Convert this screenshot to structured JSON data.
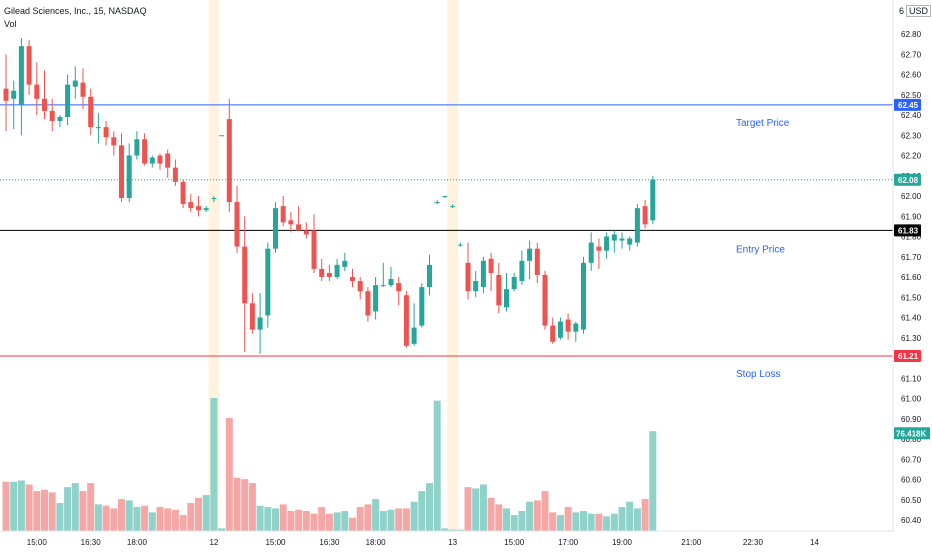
{
  "legend": {
    "symbol_line": "Gilead Sciences, Inc., 15, NASDAQ",
    "volume_label": "Vol"
  },
  "currency": {
    "prefix": "6",
    "code": "USD"
  },
  "colors": {
    "up": "#26a69a",
    "down": "#ef5350",
    "vol_up": "#8fd2c9",
    "vol_down": "#f4a7a5",
    "target_line": "#2962ff",
    "entry_line": "#000000",
    "stop_line": "#f23645",
    "session_shade": "#fff3e0",
    "annotation_text": "#2962ff",
    "current_price_bg": "#26a69a"
  },
  "chart_data": {
    "type": "candlestick",
    "title": "Gilead Sciences, Inc., 15, NASDAQ",
    "ylim": [
      60.35,
      62.86
    ],
    "price_ticks": [
      "62.80",
      "62.70",
      "62.60",
      "62.50",
      "62.40",
      "62.30",
      "62.20",
      "62.10",
      "62.00",
      "61.90",
      "61.80",
      "61.70",
      "61.60",
      "61.50",
      "61.40",
      "61.30",
      "61.20",
      "61.10",
      "61.00",
      "60.90",
      "60.80",
      "60.70",
      "60.60",
      "60.50",
      "60.40"
    ],
    "time_labels": [
      {
        "idx": 4,
        "text": "15:00"
      },
      {
        "idx": 11,
        "text": "16:30"
      },
      {
        "idx": 17,
        "text": "18:00"
      },
      {
        "idx": 27,
        "text": "12"
      },
      {
        "idx": 35,
        "text": "15:00"
      },
      {
        "idx": 42,
        "text": "16:30"
      },
      {
        "idx": 48,
        "text": "18:00"
      },
      {
        "idx": 58,
        "text": "13"
      },
      {
        "idx": 66,
        "text": "15:00"
      },
      {
        "idx": 73,
        "text": "17:00"
      },
      {
        "idx": 80,
        "text": "19:00"
      },
      {
        "idx": 89,
        "text": "21:00"
      },
      {
        "idx": 97,
        "text": "22:30"
      },
      {
        "idx": 105,
        "text": "14"
      }
    ],
    "session_breaks": [
      27,
      58
    ],
    "levels": [
      {
        "name": "Target Price",
        "price": 62.45,
        "label": "62.45",
        "color": "#2962ff"
      },
      {
        "name": "Entry Price",
        "price": 61.83,
        "label": "61.83",
        "color": "#000000"
      },
      {
        "name": "Stop Loss",
        "price": 61.21,
        "label": "61.21",
        "color": "#f23645"
      }
    ],
    "current_price": {
      "price": 62.08,
      "label": "62.08"
    },
    "volume_last_label": "76.418K",
    "candles": [
      {
        "o": 62.53,
        "h": 62.7,
        "l": 62.32,
        "c": 62.47,
        "v": 0.37
      },
      {
        "o": 62.48,
        "h": 62.57,
        "l": 62.33,
        "c": 62.52,
        "v": 0.37
      },
      {
        "o": 62.45,
        "h": 62.78,
        "l": 62.3,
        "c": 62.74,
        "v": 0.38
      },
      {
        "o": 62.74,
        "h": 62.77,
        "l": 62.5,
        "c": 62.55,
        "v": 0.35
      },
      {
        "o": 62.55,
        "h": 62.66,
        "l": 62.4,
        "c": 62.48,
        "v": 0.3
      },
      {
        "o": 62.48,
        "h": 62.62,
        "l": 62.38,
        "c": 62.42,
        "v": 0.31
      },
      {
        "o": 62.42,
        "h": 62.48,
        "l": 62.32,
        "c": 62.37,
        "v": 0.29
      },
      {
        "o": 62.37,
        "h": 62.4,
        "l": 62.34,
        "c": 62.39,
        "v": 0.21
      },
      {
        "o": 62.39,
        "h": 62.6,
        "l": 62.35,
        "c": 62.55,
        "v": 0.33
      },
      {
        "o": 62.54,
        "h": 62.64,
        "l": 62.48,
        "c": 62.57,
        "v": 0.36
      },
      {
        "o": 62.56,
        "h": 62.63,
        "l": 62.43,
        "c": 62.49,
        "v": 0.3
      },
      {
        "o": 62.49,
        "h": 62.53,
        "l": 62.3,
        "c": 62.34,
        "v": 0.36
      },
      {
        "o": 62.34,
        "h": 62.41,
        "l": 62.26,
        "c": 62.34,
        "v": 0.2
      },
      {
        "o": 62.34,
        "h": 62.37,
        "l": 62.25,
        "c": 62.29,
        "v": 0.19
      },
      {
        "o": 62.29,
        "h": 62.32,
        "l": 62.2,
        "c": 62.25,
        "v": 0.17
      },
      {
        "o": 62.25,
        "h": 62.31,
        "l": 61.97,
        "c": 61.99,
        "v": 0.24
      },
      {
        "o": 61.99,
        "h": 62.26,
        "l": 61.97,
        "c": 62.2,
        "v": 0.23
      },
      {
        "o": 62.2,
        "h": 62.32,
        "l": 62.18,
        "c": 62.28,
        "v": 0.18
      },
      {
        "o": 62.28,
        "h": 62.31,
        "l": 62.15,
        "c": 62.16,
        "v": 0.19
      },
      {
        "o": 62.16,
        "h": 62.2,
        "l": 62.14,
        "c": 62.19,
        "v": 0.14
      },
      {
        "o": 62.2,
        "h": 62.21,
        "l": 62.13,
        "c": 62.16,
        "v": 0.18
      },
      {
        "o": 62.21,
        "h": 62.23,
        "l": 62.09,
        "c": 62.14,
        "v": 0.17
      },
      {
        "o": 62.14,
        "h": 62.18,
        "l": 62.05,
        "c": 62.07,
        "v": 0.16
      },
      {
        "o": 62.07,
        "h": 62.08,
        "l": 61.94,
        "c": 61.96,
        "v": 0.12
      },
      {
        "o": 61.97,
        "h": 62.01,
        "l": 61.92,
        "c": 61.94,
        "v": 0.21
      },
      {
        "o": 61.95,
        "h": 62.0,
        "l": 61.9,
        "c": 61.93,
        "v": 0.25
      },
      {
        "o": 61.93,
        "h": 61.95,
        "l": 61.92,
        "c": 61.94,
        "v": 0.27
      },
      {
        "o": 61.99,
        "h": 62.0,
        "l": 61.97,
        "c": 61.99,
        "v": 1.0
      },
      {
        "o": 62.3,
        "h": 62.3,
        "l": 62.3,
        "c": 62.3,
        "v": 0.02
      },
      {
        "o": 62.38,
        "h": 62.48,
        "l": 61.92,
        "c": 61.97,
        "v": 0.85
      },
      {
        "o": 61.97,
        "h": 62.05,
        "l": 61.72,
        "c": 61.75,
        "v": 0.4
      },
      {
        "o": 61.75,
        "h": 61.9,
        "l": 61.23,
        "c": 61.47,
        "v": 0.39
      },
      {
        "o": 61.47,
        "h": 61.52,
        "l": 61.32,
        "c": 61.34,
        "v": 0.36
      },
      {
        "o": 61.34,
        "h": 61.52,
        "l": 61.22,
        "c": 61.4,
        "v": 0.19
      },
      {
        "o": 61.41,
        "h": 61.77,
        "l": 61.35,
        "c": 61.74,
        "v": 0.18
      },
      {
        "o": 61.74,
        "h": 61.97,
        "l": 61.72,
        "c": 61.94,
        "v": 0.17
      },
      {
        "o": 61.95,
        "h": 62.0,
        "l": 61.85,
        "c": 61.87,
        "v": 0.2
      },
      {
        "o": 61.88,
        "h": 61.92,
        "l": 61.82,
        "c": 61.86,
        "v": 0.15
      },
      {
        "o": 61.86,
        "h": 61.95,
        "l": 61.83,
        "c": 61.83,
        "v": 0.16
      },
      {
        "o": 61.83,
        "h": 61.87,
        "l": 61.79,
        "c": 61.81,
        "v": 0.15
      },
      {
        "o": 61.83,
        "h": 61.91,
        "l": 61.62,
        "c": 61.64,
        "v": 0.13
      },
      {
        "o": 61.64,
        "h": 61.69,
        "l": 61.58,
        "c": 61.6,
        "v": 0.18
      },
      {
        "o": 61.62,
        "h": 61.66,
        "l": 61.58,
        "c": 61.6,
        "v": 0.13
      },
      {
        "o": 61.6,
        "h": 61.69,
        "l": 61.59,
        "c": 61.66,
        "v": 0.14
      },
      {
        "o": 61.65,
        "h": 61.72,
        "l": 61.63,
        "c": 61.68,
        "v": 0.15
      },
      {
        "o": 61.6,
        "h": 61.64,
        "l": 61.55,
        "c": 61.58,
        "v": 0.1
      },
      {
        "o": 61.58,
        "h": 61.6,
        "l": 61.49,
        "c": 61.53,
        "v": 0.18
      },
      {
        "o": 61.53,
        "h": 61.55,
        "l": 61.38,
        "c": 61.41,
        "v": 0.2
      },
      {
        "o": 61.43,
        "h": 61.6,
        "l": 61.39,
        "c": 61.56,
        "v": 0.24
      },
      {
        "o": 61.56,
        "h": 61.67,
        "l": 61.55,
        "c": 61.56,
        "v": 0.15
      },
      {
        "o": 61.56,
        "h": 61.65,
        "l": 61.55,
        "c": 61.59,
        "v": 0.16
      },
      {
        "o": 61.57,
        "h": 61.6,
        "l": 61.46,
        "c": 61.53,
        "v": 0.17
      },
      {
        "o": 61.51,
        "h": 61.53,
        "l": 61.25,
        "c": 61.26,
        "v": 0.17
      },
      {
        "o": 61.27,
        "h": 61.47,
        "l": 61.26,
        "c": 61.35,
        "v": 0.22
      },
      {
        "o": 61.36,
        "h": 61.57,
        "l": 61.35,
        "c": 61.55,
        "v": 0.3
      },
      {
        "o": 61.55,
        "h": 61.71,
        "l": 61.51,
        "c": 61.66,
        "v": 0.36
      },
      {
        "o": 61.97,
        "h": 61.98,
        "l": 61.96,
        "c": 61.97,
        "v": 0.98
      },
      {
        "o": 62.0,
        "h": 62.0,
        "l": 61.99,
        "c": 62.0,
        "v": 0.02
      },
      {
        "o": 61.95,
        "h": 61.96,
        "l": 61.94,
        "c": 61.95,
        "v": 0.01
      },
      {
        "o": 61.76,
        "h": 61.77,
        "l": 61.75,
        "c": 61.76,
        "v": 0.01
      },
      {
        "o": 61.67,
        "h": 61.77,
        "l": 61.49,
        "c": 61.53,
        "v": 0.33
      },
      {
        "o": 61.53,
        "h": 61.63,
        "l": 61.5,
        "c": 61.58,
        "v": 0.32
      },
      {
        "o": 61.55,
        "h": 61.7,
        "l": 61.52,
        "c": 61.68,
        "v": 0.35
      },
      {
        "o": 61.69,
        "h": 61.72,
        "l": 61.53,
        "c": 61.62,
        "v": 0.25
      },
      {
        "o": 61.61,
        "h": 61.67,
        "l": 61.42,
        "c": 61.46,
        "v": 0.2
      },
      {
        "o": 61.45,
        "h": 61.62,
        "l": 61.43,
        "c": 61.54,
        "v": 0.17
      },
      {
        "o": 61.54,
        "h": 61.62,
        "l": 61.53,
        "c": 61.6,
        "v": 0.12
      },
      {
        "o": 61.58,
        "h": 61.73,
        "l": 61.56,
        "c": 61.68,
        "v": 0.15
      },
      {
        "o": 61.68,
        "h": 61.78,
        "l": 61.59,
        "c": 61.74,
        "v": 0.22
      },
      {
        "o": 61.74,
        "h": 61.77,
        "l": 61.57,
        "c": 61.61,
        "v": 0.23
      },
      {
        "o": 61.61,
        "h": 61.63,
        "l": 61.34,
        "c": 61.36,
        "v": 0.3
      },
      {
        "o": 61.36,
        "h": 61.4,
        "l": 61.27,
        "c": 61.28,
        "v": 0.14
      },
      {
        "o": 61.3,
        "h": 61.4,
        "l": 61.29,
        "c": 61.38,
        "v": 0.12
      },
      {
        "o": 61.39,
        "h": 61.42,
        "l": 61.29,
        "c": 61.33,
        "v": 0.18
      },
      {
        "o": 61.33,
        "h": 61.38,
        "l": 61.28,
        "c": 61.37,
        "v": 0.14
      },
      {
        "o": 61.34,
        "h": 61.7,
        "l": 61.32,
        "c": 61.67,
        "v": 0.15
      },
      {
        "o": 61.67,
        "h": 61.82,
        "l": 61.63,
        "c": 61.77,
        "v": 0.13
      },
      {
        "o": 61.75,
        "h": 61.79,
        "l": 61.64,
        "c": 61.73,
        "v": 0.13
      },
      {
        "o": 61.73,
        "h": 61.82,
        "l": 61.69,
        "c": 61.8,
        "v": 0.11
      },
      {
        "o": 61.78,
        "h": 61.83,
        "l": 61.72,
        "c": 61.81,
        "v": 0.13
      },
      {
        "o": 61.78,
        "h": 61.82,
        "l": 61.74,
        "c": 61.79,
        "v": 0.18
      },
      {
        "o": 61.76,
        "h": 61.8,
        "l": 61.73,
        "c": 61.79,
        "v": 0.22
      },
      {
        "o": 61.77,
        "h": 61.96,
        "l": 61.75,
        "c": 61.94,
        "v": 0.17
      },
      {
        "o": 61.95,
        "h": 61.98,
        "l": 61.84,
        "c": 61.86,
        "v": 0.24
      },
      {
        "o": 61.88,
        "h": 62.1,
        "l": 61.86,
        "c": 62.08,
        "v": 0.75
      }
    ]
  }
}
